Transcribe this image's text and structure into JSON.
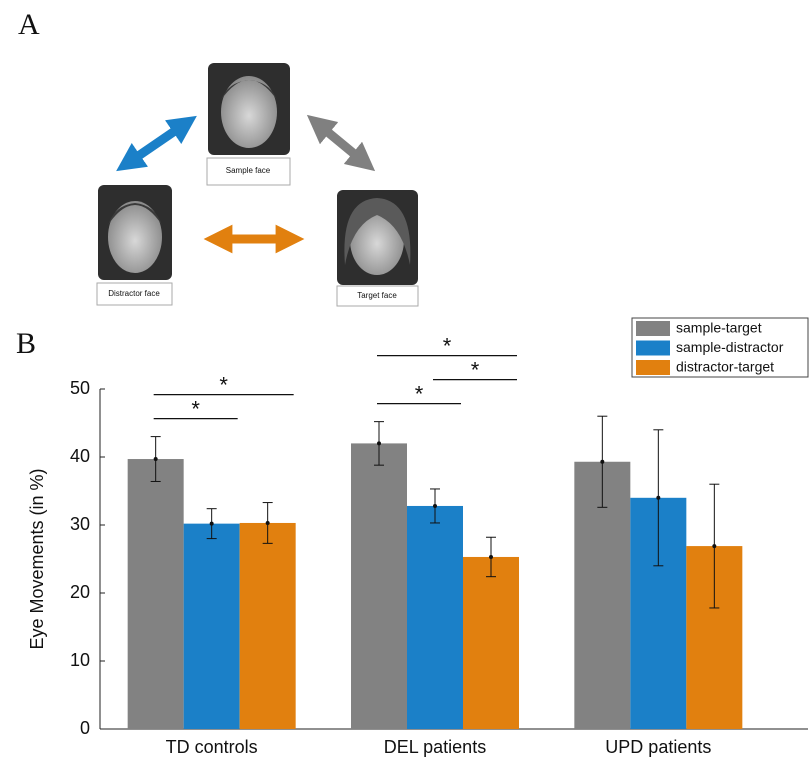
{
  "figure": {
    "panel_labels": [
      "A",
      "B"
    ],
    "faces": [
      "Sample face",
      "Distractor face",
      "Target face"
    ]
  },
  "chart_data": {
    "type": "bar",
    "categories": [
      "TD controls",
      "DEL patients",
      "UPD patients"
    ],
    "y_label": "Eye Movements (in %)",
    "ylim": [
      0,
      50
    ],
    "yticks": [
      0,
      10,
      20,
      30,
      40,
      50
    ],
    "legend": "top-right",
    "series": [
      {
        "name": "sample-target",
        "color": "#828282",
        "values": [
          39.7,
          42.0,
          39.3
        ],
        "errors": [
          3.3,
          3.2,
          6.7
        ]
      },
      {
        "name": "sample-distractor",
        "color": "#1b80c8",
        "values": [
          30.2,
          32.8,
          34.0
        ],
        "errors": [
          2.2,
          2.5,
          10.0
        ]
      },
      {
        "name": "distractor-target",
        "color": "#e1800f",
        "values": [
          30.3,
          25.3,
          26.9
        ],
        "errors": [
          3.0,
          2.9,
          9.1
        ]
      }
    ],
    "annotations": [
      {
        "text": "*",
        "category": 0,
        "series": [
          0,
          1
        ]
      },
      {
        "text": "*",
        "category": 0,
        "series": [
          0,
          2
        ]
      },
      {
        "text": "*",
        "category": 1,
        "series": [
          0,
          1
        ]
      },
      {
        "text": "*",
        "category": 1,
        "series": [
          0,
          2
        ]
      },
      {
        "text": "*",
        "category": 1,
        "series": [
          1,
          2
        ]
      }
    ]
  }
}
